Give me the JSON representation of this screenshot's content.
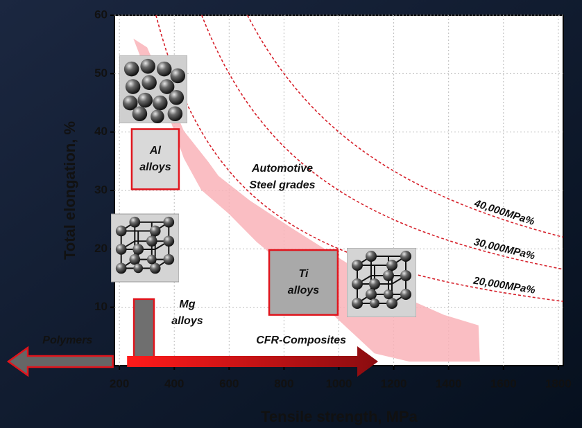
{
  "chart_data": {
    "type": "materials-map",
    "x_label": "Tensile strength, MPa",
    "y_label": "Total elongation, %",
    "xlim": [
      182,
      1818
    ],
    "ylim": [
      0,
      60
    ],
    "xticks": [
      200,
      400,
      600,
      800,
      1000,
      1200,
      1400,
      1600,
      1800
    ],
    "yticks": [
      10,
      20,
      30,
      40,
      50,
      60
    ],
    "grid": true,
    "iso_lines": [
      {
        "value": 40000,
        "label": "40,000MPa%"
      },
      {
        "value": 30000,
        "label": "30,000MPa%"
      },
      {
        "value": 20000,
        "label": "20,000MPa%"
      }
    ],
    "steel_band": {
      "label": [
        "Automotive",
        "Steel grades"
      ],
      "color": "#f9b3b8",
      "x": [
        251,
        301,
        435,
        524,
        561,
        675,
        827,
        1029,
        1181,
        1383,
        1509,
        1514,
        1257,
        1130,
        979,
        852,
        700,
        599,
        498,
        435,
        372,
        283
      ],
      "y": [
        56,
        54.5,
        40.2,
        34.9,
        32.5,
        28.3,
        23.6,
        17.6,
        12.9,
        8.7,
        6.9,
        0.7,
        0.7,
        2.1,
        8.7,
        15.2,
        21.2,
        26,
        30.1,
        35.5,
        43.8,
        52.1
      ]
    },
    "regions": [
      {
        "label": [
          "Al",
          "alloys"
        ],
        "x": [
          245,
          417
        ],
        "y": [
          30.2,
          40.5
        ],
        "color": "#d9d9d9"
      },
      {
        "label": [
          "Ti",
          "alloys"
        ],
        "x": [
          746,
          996
        ],
        "y": [
          8.7,
          19.8
        ],
        "color": "#a9a9a9"
      },
      {
        "label": [
          "Mg",
          "alloys"
        ],
        "x": [
          253,
          326
        ],
        "y": [
          0,
          11.4
        ],
        "color": "#6f6f6f"
      }
    ],
    "arrows": [
      {
        "label": "Polymers",
        "x": [
          176
        ],
        "color": "#666666"
      },
      {
        "label": "CFR-Composites",
        "x": [
          228,
          1143
        ],
        "color": "#d9141c"
      }
    ]
  }
}
